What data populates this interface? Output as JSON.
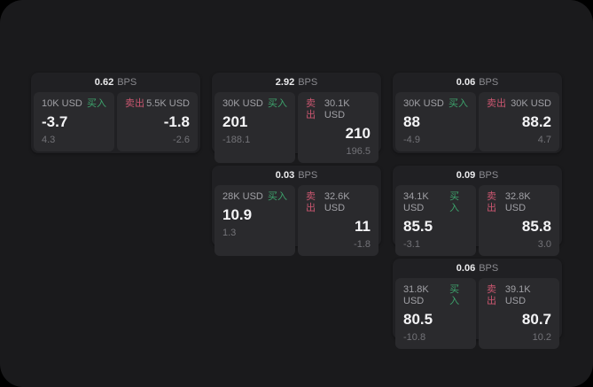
{
  "labels": {
    "bps_unit": "BPS",
    "buy": "买入",
    "sell": "卖出"
  },
  "colors": {
    "page_bg": "#1a1a1c",
    "card_bg": "#202023",
    "panel_bg": "#2a2a2d",
    "buy_green": "#3da36c",
    "sell_red": "#ca5670",
    "value_text": "#f4f4f6",
    "muted_text": "#8b8b90"
  },
  "cards": [
    {
      "col": 1,
      "row": 1,
      "bps": "0.62",
      "buy": {
        "size": "10K USD",
        "value": "-3.7",
        "delta": "4.3"
      },
      "sell": {
        "size": "5.5K USD",
        "value": "-1.8",
        "delta": "-2.6"
      }
    },
    {
      "col": 2,
      "row": 1,
      "bps": "2.92",
      "buy": {
        "size": "30K USD",
        "value": "201",
        "delta": "-188.1"
      },
      "sell": {
        "size": "30.1K USD",
        "value": "210",
        "delta": "196.5"
      }
    },
    {
      "col": 3,
      "row": 1,
      "bps": "0.06",
      "buy": {
        "size": "30K USD",
        "value": "88",
        "delta": "-4.9"
      },
      "sell": {
        "size": "30K USD",
        "value": "88.2",
        "delta": "4.7"
      }
    },
    {
      "col": 2,
      "row": 2,
      "bps": "0.03",
      "buy": {
        "size": "28K USD",
        "value": "10.9",
        "delta": "1.3"
      },
      "sell": {
        "size": "32.6K USD",
        "value": "11",
        "delta": "-1.8"
      }
    },
    {
      "col": 3,
      "row": 2,
      "bps": "0.09",
      "buy": {
        "size": "34.1K USD",
        "value": "85.5",
        "delta": "-3.1"
      },
      "sell": {
        "size": "32.8K USD",
        "value": "85.8",
        "delta": "3.0"
      }
    },
    {
      "col": 3,
      "row": 3,
      "bps": "0.06",
      "buy": {
        "size": "31.8K USD",
        "value": "80.5",
        "delta": "-10.8"
      },
      "sell": {
        "size": "39.1K USD",
        "value": "80.7",
        "delta": "10.2"
      }
    }
  ]
}
